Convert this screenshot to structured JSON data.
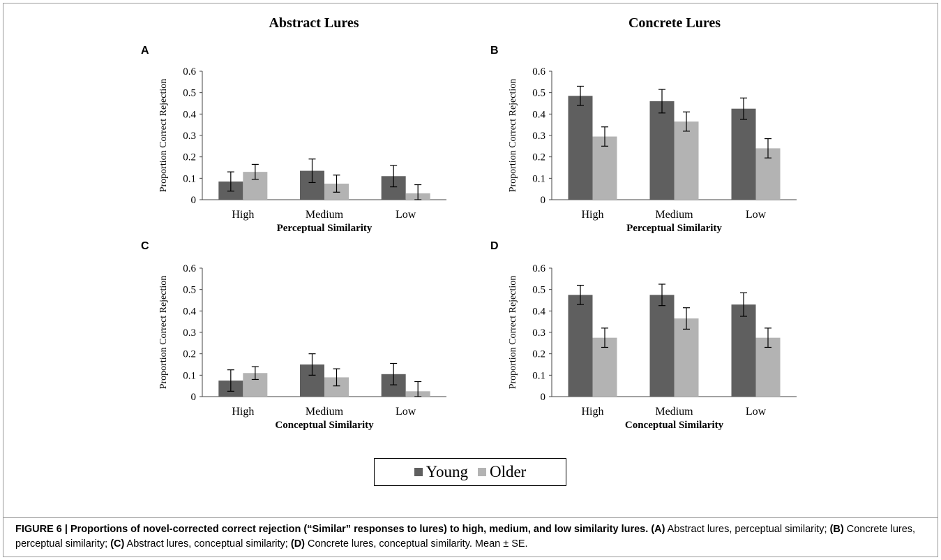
{
  "column_titles": [
    "Abstract Lures",
    "Concrete Lures"
  ],
  "colors": {
    "Young": "#5f5f5f",
    "Older": "#b3b3b3"
  },
  "legend": [
    {
      "label": "Young",
      "color": "#5f5f5f"
    },
    {
      "label": "Older",
      "color": "#b3b3b3"
    }
  ],
  "caption": {
    "bold_lead": "FIGURE 6 | Proportions of novel-corrected correct rejection (“Similar” responses to lures) to high, medium, and low similarity lures.",
    "segments": [
      {
        "b": "(A)",
        "t": " Abstract lures, perceptual similarity; "
      },
      {
        "b": "(B)",
        "t": " Concrete lures, perceptual similarity; "
      },
      {
        "b": "(C)",
        "t": " Abstract lures, conceptual similarity; "
      },
      {
        "b": "(D)",
        "t": " Concrete lures, conceptual similarity. Mean ± SE."
      }
    ]
  },
  "chart_data": [
    {
      "panel": "A",
      "type": "bar",
      "categories": [
        "High",
        "Medium",
        "Low"
      ],
      "xlabel": "Perceptual Similarity",
      "ylabel": "Proportion Correct Rejection",
      "ylim": [
        0,
        0.6
      ],
      "yticks": [
        "0",
        "0.1",
        "0.2",
        "0.3",
        "0.4",
        "0.5",
        "0.6"
      ],
      "series": [
        {
          "name": "Young",
          "values": [
            0.085,
            0.135,
            0.11
          ],
          "errors": [
            0.045,
            0.055,
            0.05
          ]
        },
        {
          "name": "Older",
          "values": [
            0.13,
            0.075,
            0.03
          ],
          "errors": [
            0.035,
            0.04,
            0.04
          ]
        }
      ]
    },
    {
      "panel": "B",
      "type": "bar",
      "categories": [
        "High",
        "Medium",
        "Low"
      ],
      "xlabel": "Perceptual Similarity",
      "ylabel": "Proportion Correct Rejection",
      "ylim": [
        0,
        0.6
      ],
      "yticks": [
        "0",
        "0.1",
        "0.2",
        "0.3",
        "0.4",
        "0.5",
        "0.6"
      ],
      "series": [
        {
          "name": "Young",
          "values": [
            0.485,
            0.46,
            0.425
          ],
          "errors": [
            0.045,
            0.055,
            0.05
          ]
        },
        {
          "name": "Older",
          "values": [
            0.295,
            0.365,
            0.24
          ],
          "errors": [
            0.045,
            0.045,
            0.045
          ]
        }
      ]
    },
    {
      "panel": "C",
      "type": "bar",
      "categories": [
        "High",
        "Medium",
        "Low"
      ],
      "xlabel": "Conceptual Similarity",
      "ylabel": "Proportion Correct Rejection",
      "ylim": [
        0,
        0.6
      ],
      "yticks": [
        "0",
        "0.1",
        "0.2",
        "0.3",
        "0.4",
        "0.5",
        "0.6"
      ],
      "series": [
        {
          "name": "Young",
          "values": [
            0.075,
            0.15,
            0.105
          ],
          "errors": [
            0.05,
            0.05,
            0.05
          ]
        },
        {
          "name": "Older",
          "values": [
            0.11,
            0.09,
            0.025
          ],
          "errors": [
            0.03,
            0.04,
            0.045
          ]
        }
      ]
    },
    {
      "panel": "D",
      "type": "bar",
      "categories": [
        "High",
        "Medium",
        "Low"
      ],
      "xlabel": "Conceptual Similarity",
      "ylabel": "Proportion Correct Rejection",
      "ylim": [
        0,
        0.6
      ],
      "yticks": [
        "0",
        "0.1",
        "0.2",
        "0.3",
        "0.4",
        "0.5",
        "0.6"
      ],
      "series": [
        {
          "name": "Young",
          "values": [
            0.475,
            0.475,
            0.43
          ],
          "errors": [
            0.045,
            0.05,
            0.055
          ]
        },
        {
          "name": "Older",
          "values": [
            0.275,
            0.365,
            0.275
          ],
          "errors": [
            0.045,
            0.05,
            0.045
          ]
        }
      ]
    }
  ]
}
